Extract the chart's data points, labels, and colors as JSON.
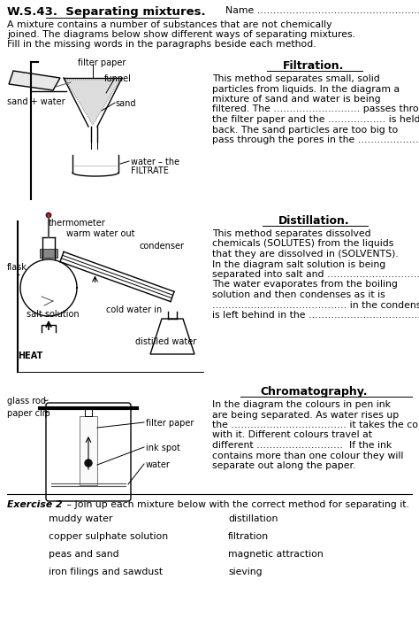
{
  "bg_color": "#ffffff",
  "header_ws": "W.S.43.  ",
  "header_title": "Separating mixtures.",
  "name_text": "Name ………………………………………………………",
  "intro_lines": [
    "A mixture contains a number of substances that are not chemically",
    "joined. The diagrams below show different ways of separating mixtures.",
    "Fill in the missing words in the paragraphs beside each method."
  ],
  "filtration_title": "Filtration.",
  "filtration_lines": [
    "This method separates small, solid",
    "particles from liquids. In the diagram a",
    "mixture of sand and water is being",
    "filtered. The ……………………… passes through",
    "the filter paper and the ……………… is held",
    "back. The sand particles are too big to",
    "pass through the pores in the ……………………"
  ],
  "distillation_title": "Distillation.",
  "distillation_lines": [
    "This method separates dissolved",
    "chemicals (SOLUTES) from the liquids",
    "that they are dissolved in (SOLVENTS).",
    "In the diagram salt solution is being",
    "separated into salt and ……………………………",
    "The water evaporates from the boiling",
    "solution and then condenses as it is",
    "…………………………………… in the condenser. The salt",
    "is left behind in the ……………………………………"
  ],
  "chromatography_title": "Chromatography.",
  "chromatography_lines": [
    "In the diagram the colours in pen ink",
    "are being separated. As water rises up",
    "the ……………………………… it takes the colours",
    "with it. Different colours travel at",
    "different ………………………  If the ink",
    "contains more than one colour they will",
    "separate out along the paper."
  ],
  "exercise_title": "Exercise 2",
  "exercise_intro": " – Join up each mixture below with the correct method for separating it.",
  "mixtures": [
    "muddy water",
    "copper sulphate solution",
    "peas and sand",
    "iron filings and sawdust"
  ],
  "methods": [
    "distillation",
    "filtration",
    "magnetic attraction",
    "sieving"
  ]
}
